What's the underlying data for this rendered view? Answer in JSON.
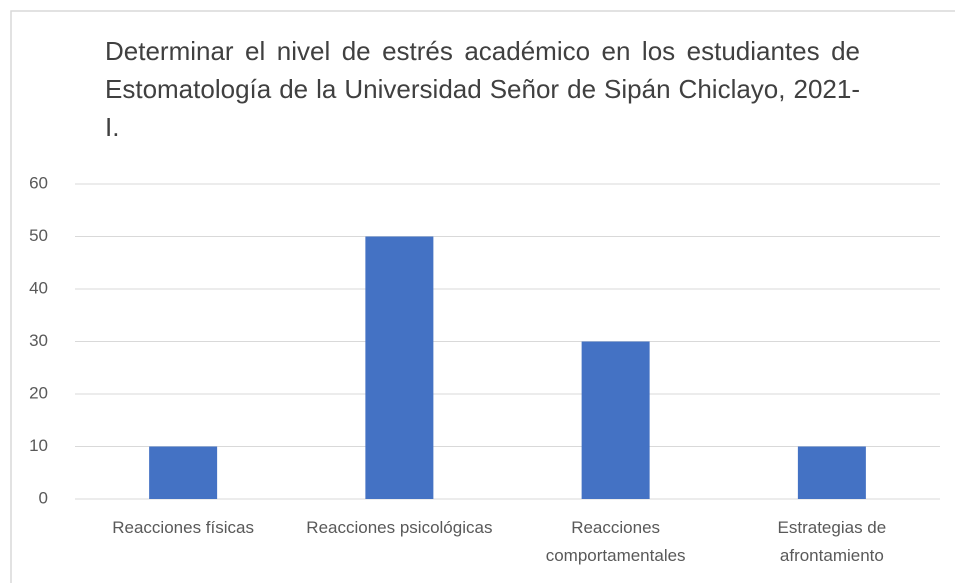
{
  "chart_data": {
    "type": "bar",
    "title": "Determinar el nivel de estrés académico en los estudiantes de Estomatología de la Universidad Señor de Sipán Chiclayo, 2021-I.",
    "categories": [
      "Reacciones físicas",
      "Reacciones psicológicas",
      "Reacciones comportamentales",
      "Estrategias de afrontamiento"
    ],
    "values": [
      10,
      50,
      30,
      10
    ],
    "color": "#4472c4",
    "ylim": [
      0,
      60
    ],
    "yticks": [
      0,
      10,
      20,
      30,
      40,
      50,
      60
    ],
    "grid": true
  }
}
